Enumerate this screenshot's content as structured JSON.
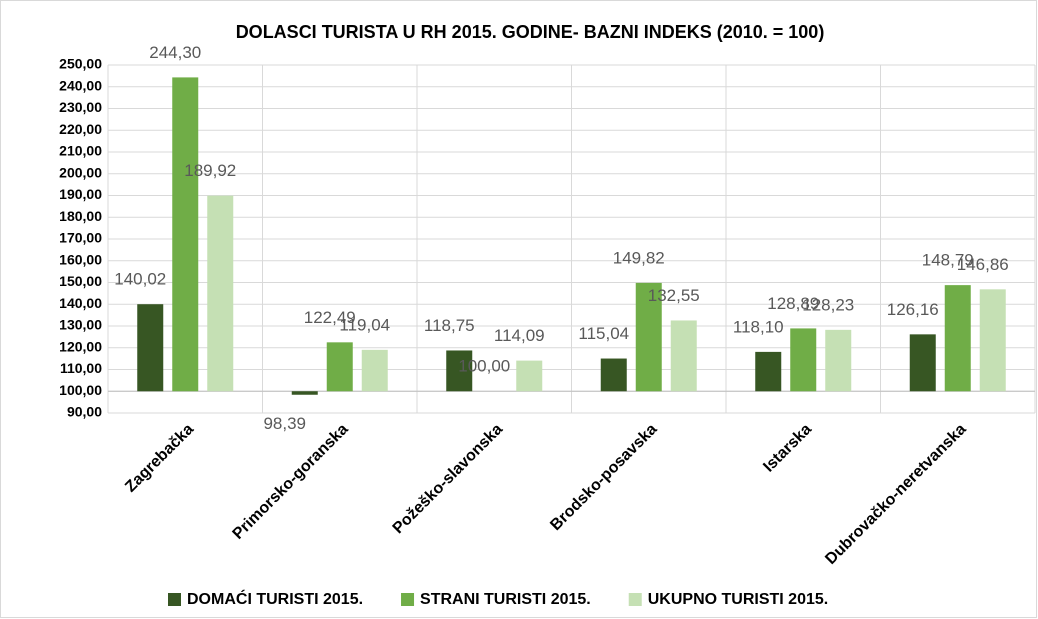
{
  "chart_data": {
    "type": "bar",
    "title": "DOLASCI TURISTA U RH 2015. GODINE- BAZNI INDEKS (2010. = 100)",
    "categories": [
      "Zagrebačka",
      "Primorsko-goranska",
      "Požeško-slavonska",
      "Brodsko-posavska",
      "Istarska",
      "Dubrovačko-neretvanska"
    ],
    "series": [
      {
        "name": "DOMAĆI TURISTI 2015.",
        "color": "#375623",
        "values": [
          140.02,
          98.39,
          118.75,
          115.04,
          118.1,
          126.16
        ],
        "value_labels": [
          "140,02",
          "98,39",
          "118,75",
          "115,04",
          "118,10",
          "126,16"
        ]
      },
      {
        "name": "STRANI TURISTI  2015.",
        "color": "#70ad47",
        "values": [
          244.3,
          122.49,
          100.0,
          149.82,
          128.89,
          148.79
        ],
        "value_labels": [
          "244,30",
          "122,49",
          "100,00",
          "149,82",
          "128,89",
          "148,79"
        ]
      },
      {
        "name": "UKUPNO TURISTI  2015.",
        "color": "#c5e0b4",
        "values": [
          189.92,
          119.04,
          114.09,
          132.55,
          128.23,
          146.86
        ],
        "value_labels": [
          "189,92",
          "119,04",
          "114,09",
          "132,55",
          "128,23",
          "146,86"
        ]
      }
    ],
    "ylim": [
      90,
      250
    ],
    "yticks": [
      {
        "value": 90,
        "label": "90,00"
      },
      {
        "value": 100,
        "label": "100,00"
      },
      {
        "value": 110,
        "label": "110,00"
      },
      {
        "value": 120,
        "label": "120,00"
      },
      {
        "value": 130,
        "label": "130,00"
      },
      {
        "value": 140,
        "label": "140,00"
      },
      {
        "value": 150,
        "label": "150,00"
      },
      {
        "value": 160,
        "label": "160,00"
      },
      {
        "value": 170,
        "label": "170,00"
      },
      {
        "value": 180,
        "label": "180,00"
      },
      {
        "value": 190,
        "label": "190,00"
      },
      {
        "value": 200,
        "label": "200,00"
      },
      {
        "value": 210,
        "label": "210,00"
      },
      {
        "value": 220,
        "label": "220,00"
      },
      {
        "value": 230,
        "label": "230,00"
      },
      {
        "value": 240,
        "label": "240,00"
      },
      {
        "value": 250,
        "label": "250,00"
      }
    ],
    "baseline": 100,
    "grid": true,
    "legend": "bottom"
  }
}
